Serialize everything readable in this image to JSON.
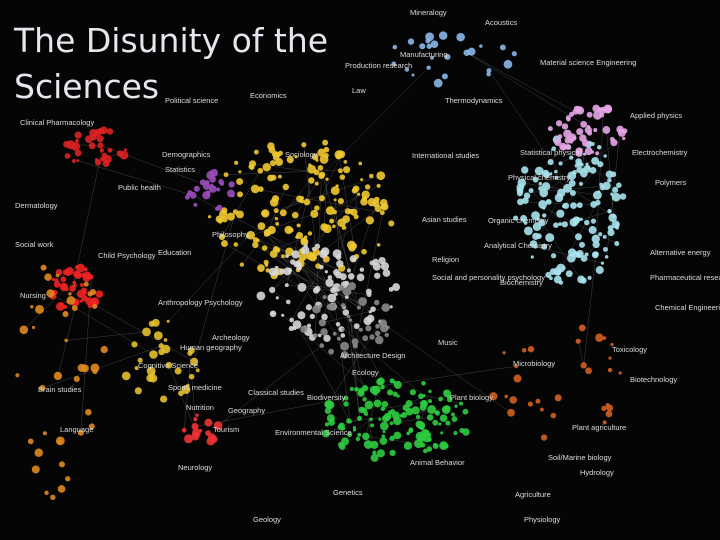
{
  "title": "The Disunity of the Sciences",
  "nodes": [
    {
      "label": "Mineralogy"
    },
    {
      "label": "Acoustics"
    },
    {
      "label": "Manufacturing"
    },
    {
      "label": "Production research"
    },
    {
      "label": "Material science Engineering"
    },
    {
      "label": "Law"
    },
    {
      "label": "Economics"
    },
    {
      "label": "Political science"
    },
    {
      "label": "Clinical Pharmacology"
    },
    {
      "label": "Thermodynamics"
    },
    {
      "label": "Applied physics"
    },
    {
      "label": "Demographics"
    },
    {
      "label": "Sociology"
    },
    {
      "label": "Statistics"
    },
    {
      "label": "Statistical physics"
    },
    {
      "label": "Electrochemistry"
    },
    {
      "label": "International studies"
    },
    {
      "label": "Public health"
    },
    {
      "label": "Physical chemistry"
    },
    {
      "label": "Polymers"
    },
    {
      "label": "Dermatology"
    },
    {
      "label": "Asian studies"
    },
    {
      "label": "Organic chemistry"
    },
    {
      "label": "Philosophy"
    },
    {
      "label": "Analytical Chemistry"
    },
    {
      "label": "Social work"
    },
    {
      "label": "Education"
    },
    {
      "label": "Child Psychology"
    },
    {
      "label": "Alternative energy"
    },
    {
      "label": "Religion"
    },
    {
      "label": "Pharmaceutical research"
    },
    {
      "label": "Social and personality psychology"
    },
    {
      "label": "Biochemistry"
    },
    {
      "label": "Nursing"
    },
    {
      "label": "Anthropology Psychology"
    },
    {
      "label": "Chemical Engineering"
    },
    {
      "label": "Archeology"
    },
    {
      "label": "Human geography"
    },
    {
      "label": "Music"
    },
    {
      "label": "Architecture Design"
    },
    {
      "label": "Toxicology"
    },
    {
      "label": "Cognitive Science"
    },
    {
      "label": "Microbiology"
    },
    {
      "label": "Ecology"
    },
    {
      "label": "Sports medicine"
    },
    {
      "label": "Classical studies"
    },
    {
      "label": "Biotechnology"
    },
    {
      "label": "Brain studies"
    },
    {
      "label": "Biodiversity"
    },
    {
      "label": "Plant biology"
    },
    {
      "label": "Geography"
    },
    {
      "label": "Nutrition"
    },
    {
      "label": "Tourism"
    },
    {
      "label": "Environmental Science"
    },
    {
      "label": "Plant agriculture"
    },
    {
      "label": "Language"
    },
    {
      "label": "Soil/Marine biology"
    },
    {
      "label": "Neurology"
    },
    {
      "label": "Animal Behavior"
    },
    {
      "label": "Hydrology"
    },
    {
      "label": "Genetics"
    },
    {
      "label": "Agriculture"
    },
    {
      "label": "Geology"
    },
    {
      "label": "Physiology"
    }
  ]
}
